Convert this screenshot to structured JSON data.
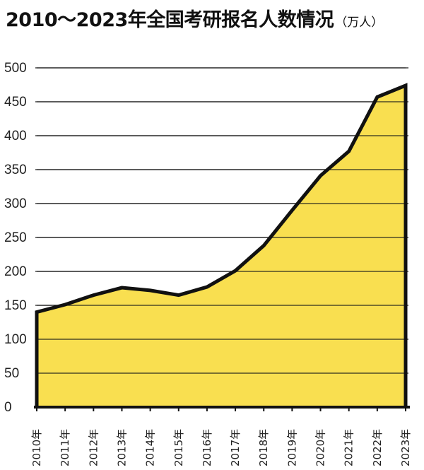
{
  "chart_data": {
    "type": "area",
    "title": "2010～2023年全国考研报名人数情况",
    "unit": "（万人）",
    "categories": [
      "2010年",
      "2011年",
      "2012年",
      "2013年",
      "2014年",
      "2015年",
      "2016年",
      "2017年",
      "2018年",
      "2019年",
      "2020年",
      "2021年",
      "2022年",
      "2023年"
    ],
    "values": [
      140,
      151,
      165,
      176,
      172,
      165,
      177,
      201,
      238,
      290,
      341,
      377,
      457,
      474
    ],
    "ylim": [
      0,
      500
    ],
    "yticks": [
      0,
      50,
      100,
      150,
      200,
      250,
      300,
      350,
      400,
      450,
      500
    ],
    "grid": true,
    "fill_color": "#F9DF50",
    "line_color": "#111111"
  }
}
